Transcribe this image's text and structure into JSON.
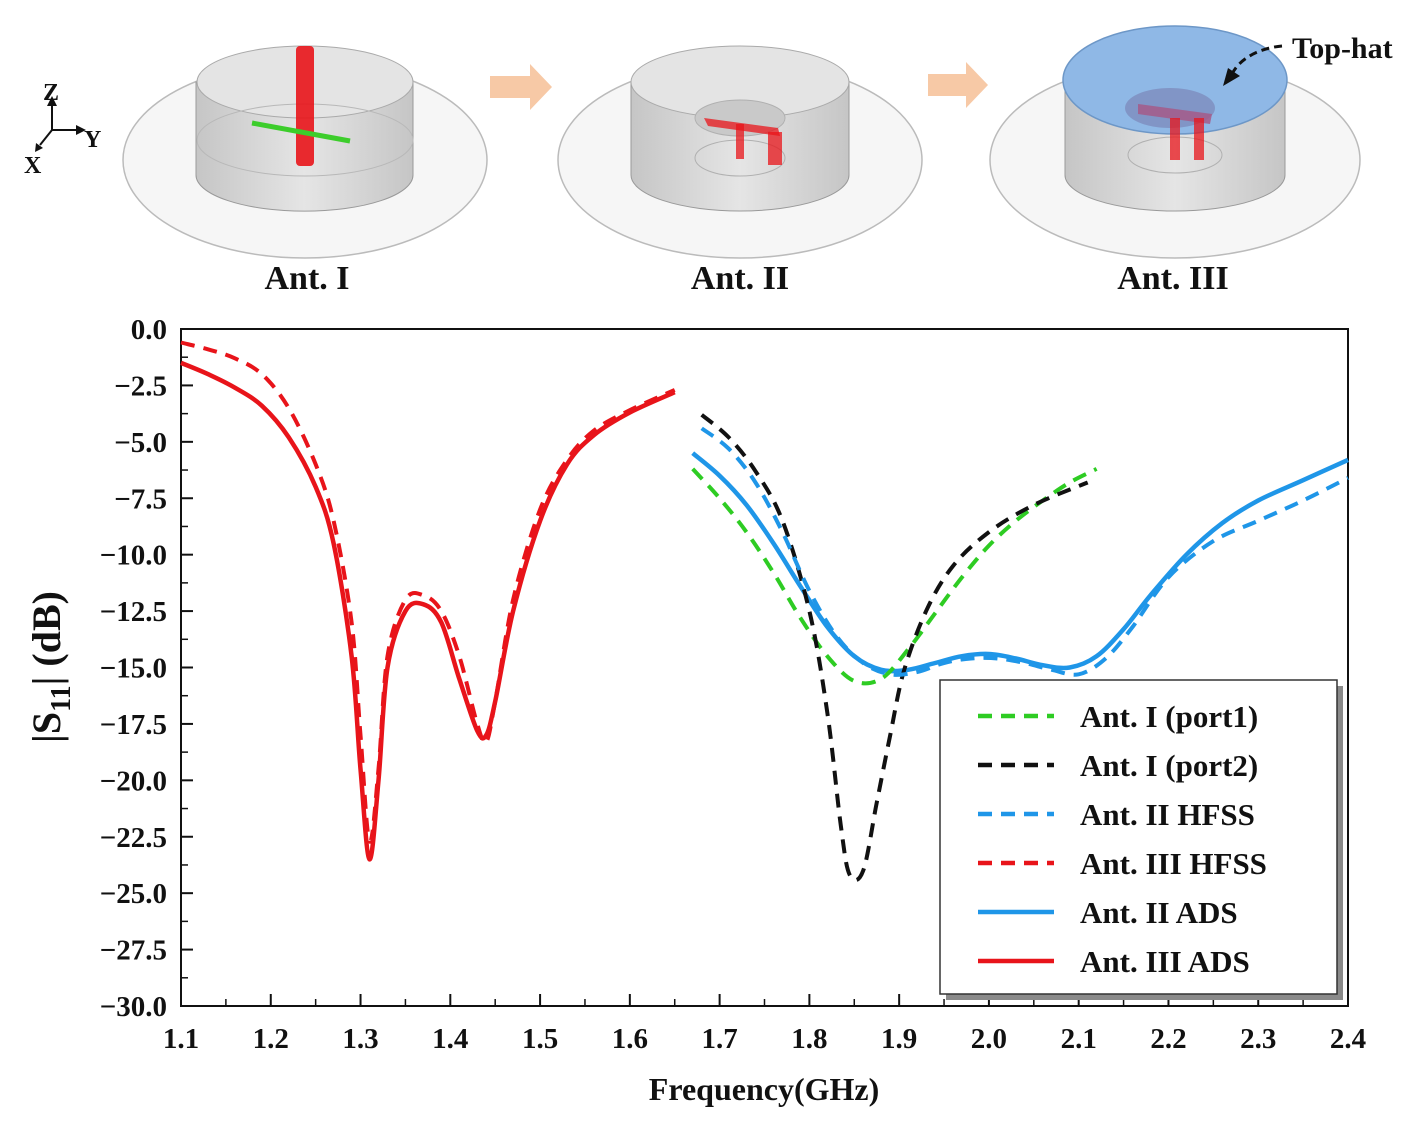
{
  "antennas": [
    {
      "label": "Ant. I"
    },
    {
      "label": "Ant. II"
    },
    {
      "label": "Ant. III"
    }
  ],
  "tophat_label": "Top-hat",
  "axes_labels": {
    "z": "Z",
    "y": "Y",
    "x": "X"
  },
  "colors": {
    "green": "#2ecc23",
    "black": "#111111",
    "blue": "#1f96e8",
    "red": "#e8141a",
    "tophat": "#8fb8e6"
  },
  "chart_data": {
    "type": "line",
    "title": "",
    "xlabel": "Frequency(GHz)",
    "ylabel": "|S11| (dB)",
    "ylabel_main": "|S",
    "ylabel_sub": "11",
    "ylabel_tail": "| (dB)",
    "xlim": [
      1.1,
      2.4
    ],
    "ylim": [
      -30.0,
      0.0
    ],
    "xticks": [
      "1.1",
      "1.2",
      "1.3",
      "1.4",
      "1.5",
      "1.6",
      "1.7",
      "1.8",
      "1.9",
      "2.0",
      "2.1",
      "2.2",
      "2.3",
      "2.4"
    ],
    "yticks": [
      "0.0",
      "−2.5",
      "−5.0",
      "−7.5",
      "−10.0",
      "−12.5",
      "−15.0",
      "−17.5",
      "−20.0",
      "−22.5",
      "−25.0",
      "−27.5",
      "−30.0"
    ],
    "legend_position": "bottom-right",
    "series": [
      {
        "name": "Ant. I (port1)",
        "style": "dashed",
        "color": "#2ecc23",
        "x": [
          1.67,
          1.7,
          1.73,
          1.76,
          1.79,
          1.82,
          1.85,
          1.88,
          1.91,
          1.94,
          1.97,
          2.0,
          2.03,
          2.06,
          2.09,
          2.12
        ],
        "y": [
          -6.2,
          -7.5,
          -9.0,
          -10.8,
          -12.8,
          -14.5,
          -15.6,
          -15.5,
          -14.2,
          -12.6,
          -11.0,
          -9.6,
          -8.5,
          -7.6,
          -6.8,
          -6.2
        ]
      },
      {
        "name": "Ant. I (port2)",
        "style": "dashed",
        "color": "#111111",
        "x": [
          1.68,
          1.71,
          1.74,
          1.77,
          1.8,
          1.82,
          1.835,
          1.845,
          1.86,
          1.875,
          1.89,
          1.905,
          1.93,
          1.96,
          2.0,
          2.05,
          2.11
        ],
        "y": [
          -3.8,
          -4.8,
          -6.3,
          -8.5,
          -12.5,
          -17.0,
          -22.0,
          -24.2,
          -24.0,
          -21.0,
          -18.0,
          -15.2,
          -12.5,
          -10.5,
          -9.0,
          -7.8,
          -6.8
        ]
      },
      {
        "name": "Ant. II HFSS",
        "style": "dashed",
        "color": "#1f96e8",
        "x": [
          1.68,
          1.71,
          1.74,
          1.77,
          1.8,
          1.83,
          1.86,
          1.89,
          1.92,
          1.95,
          1.98,
          2.01,
          2.04,
          2.07,
          2.1,
          2.13,
          2.16,
          2.2,
          2.25,
          2.3,
          2.35,
          2.4
        ],
        "y": [
          -4.4,
          -5.3,
          -6.8,
          -9.0,
          -11.6,
          -13.6,
          -14.8,
          -15.3,
          -15.2,
          -14.8,
          -14.6,
          -14.6,
          -14.8,
          -15.1,
          -15.3,
          -14.6,
          -13.2,
          -11.0,
          -9.4,
          -8.5,
          -7.6,
          -6.6
        ]
      },
      {
        "name": "Ant. III HFSS",
        "style": "dashed",
        "color": "#e8141a",
        "x": [
          1.1,
          1.13,
          1.16,
          1.19,
          1.22,
          1.25,
          1.27,
          1.29,
          1.3,
          1.31,
          1.32,
          1.33,
          1.35,
          1.37,
          1.39,
          1.41,
          1.43,
          1.44,
          1.45,
          1.47,
          1.5,
          1.53,
          1.56,
          1.6,
          1.65
        ],
        "y": [
          -0.6,
          -0.9,
          -1.3,
          -2.0,
          -3.5,
          -6.0,
          -8.5,
          -13.0,
          -18.0,
          -22.7,
          -19.5,
          -14.5,
          -12.0,
          -11.8,
          -12.5,
          -14.5,
          -17.5,
          -18.3,
          -16.5,
          -12.0,
          -8.0,
          -5.8,
          -4.5,
          -3.6,
          -2.7
        ]
      },
      {
        "name": "Ant. II ADS",
        "style": "solid",
        "color": "#1f96e8",
        "x": [
          1.67,
          1.7,
          1.73,
          1.76,
          1.79,
          1.82,
          1.85,
          1.88,
          1.91,
          1.94,
          1.97,
          2.0,
          2.03,
          2.06,
          2.09,
          2.12,
          2.15,
          2.18,
          2.22,
          2.26,
          2.3,
          2.35,
          2.4
        ],
        "y": [
          -5.5,
          -6.5,
          -7.8,
          -9.5,
          -11.4,
          -13.2,
          -14.5,
          -15.1,
          -15.1,
          -14.8,
          -14.5,
          -14.4,
          -14.6,
          -14.9,
          -15.0,
          -14.5,
          -13.3,
          -11.8,
          -10.0,
          -8.6,
          -7.6,
          -6.7,
          -5.8
        ]
      },
      {
        "name": "Ant. III ADS",
        "style": "solid",
        "color": "#e8141a",
        "x": [
          1.1,
          1.13,
          1.16,
          1.19,
          1.22,
          1.25,
          1.27,
          1.29,
          1.3,
          1.31,
          1.32,
          1.33,
          1.35,
          1.37,
          1.39,
          1.41,
          1.43,
          1.44,
          1.45,
          1.47,
          1.5,
          1.53,
          1.56,
          1.6,
          1.65
        ],
        "y": [
          -1.5,
          -2.0,
          -2.6,
          -3.4,
          -4.8,
          -7.0,
          -9.5,
          -14.5,
          -19.5,
          -23.5,
          -20.0,
          -15.0,
          -12.5,
          -12.2,
          -13.0,
          -15.5,
          -17.8,
          -18.0,
          -16.5,
          -12.5,
          -8.5,
          -6.0,
          -4.7,
          -3.7,
          -2.8
        ]
      }
    ]
  }
}
